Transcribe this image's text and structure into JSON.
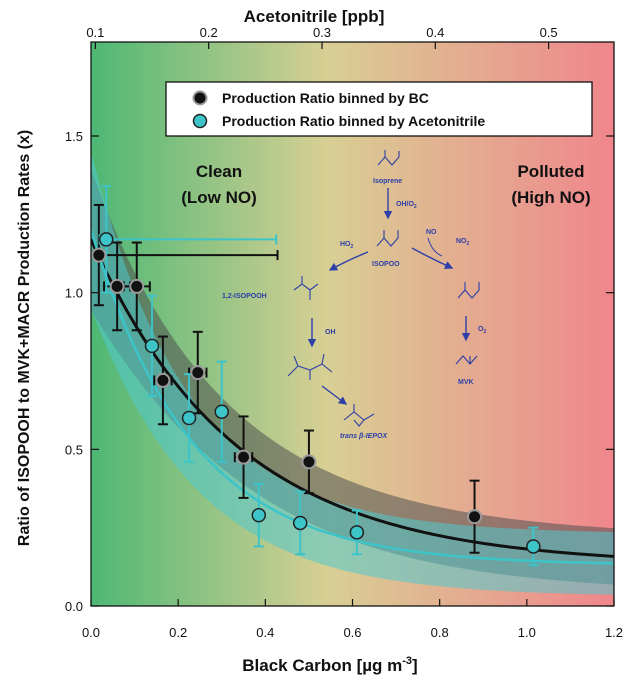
{
  "chart_data": {
    "type": "scatter",
    "xlabel": "Black Carbon [µg m",
    "xlabel_sup": "-3",
    "xlabel_end": "]",
    "x2label": "Acetonitrile [ppb]",
    "ylabel": "Ratio of ISOPOOH to MVK+MACR Production Rates (x)",
    "xlim": [
      0,
      1.2
    ],
    "ylim": [
      0,
      1.8
    ],
    "x_ticks": [
      "0.0",
      "0.2",
      "0.4",
      "0.6",
      "0.8",
      "1.0",
      "1.2"
    ],
    "y_ticks": [
      "0.0",
      "0.5",
      "1.0",
      "1.5"
    ],
    "x2_ticks": [
      "0.1",
      "0.2",
      "0.3",
      "0.4",
      "0.5"
    ],
    "x2_tick_positions_in_x_units": [
      0.01,
      0.27,
      0.53,
      0.79,
      1.05
    ],
    "regions": {
      "clean": "Clean",
      "clean_sub": "(Low NO)",
      "polluted": "Polluted",
      "polluted_sub": "(High NO)"
    },
    "legend": {
      "placement": "top",
      "entries": [
        "Production Ratio binned by BC",
        "Production Ratio binned by Acetonitrile"
      ]
    },
    "colors": {
      "bc": "#111111",
      "acetonitrile": "#3cc4c8",
      "gradient_left": "#4db874",
      "gradient_mid": "#d8cf94",
      "gradient_right": "#f0868c"
    },
    "series": [
      {
        "name": "Production Ratio binned by BC",
        "x": [
          0.018,
          0.06,
          0.105,
          0.165,
          0.245,
          0.35,
          0.5,
          0.88
        ],
        "y": [
          1.12,
          1.02,
          1.02,
          0.72,
          0.745,
          0.475,
          0.46,
          0.285
        ],
        "y_err": [
          0.16,
          0.14,
          0.14,
          0.14,
          0.13,
          0.13,
          0.1,
          0.115
        ],
        "x_err": [
          [
            0.012,
            0.41
          ],
          [
            0.03,
            0.03
          ],
          [
            0.03,
            0.03
          ],
          [
            0.02,
            0.02
          ],
          [
            0.02,
            0.02
          ],
          [
            0.02,
            0.02
          ],
          [
            0.0,
            0.0
          ],
          [
            0.0,
            0.0
          ]
        ]
      },
      {
        "name": "Production Ratio binned by Acetonitrile",
        "x": [
          0.035,
          0.14,
          0.225,
          0.3,
          0.385,
          0.48,
          0.61,
          1.015
        ],
        "y": [
          1.17,
          0.83,
          0.6,
          0.62,
          0.29,
          0.265,
          0.235,
          0.19
        ],
        "y_err": [
          0.17,
          0.16,
          0.14,
          0.16,
          0.1,
          0.1,
          0.07,
          0.06
        ],
        "x_err": [
          [
            0.015,
            0.39
          ],
          [
            0.0,
            0.0
          ],
          [
            0.0,
            0.0
          ],
          [
            0.0,
            0.0
          ],
          [
            0.0,
            0.0
          ],
          [
            0.0,
            0.0
          ],
          [
            0.0,
            0.0
          ],
          [
            0.0,
            0.0
          ]
        ]
      }
    ],
    "fits": [
      {
        "name": "BC fit",
        "y0": 1.17,
        "k": 3.0,
        "c": 0.13,
        "band": 0.09
      },
      {
        "name": "Acetonitrile fit",
        "y0": 1.2,
        "k": 4.3,
        "c": 0.13,
        "band": 0.1
      }
    ],
    "mechanism": {
      "isoprene": "Isoprene",
      "oh_o2": "OH/O",
      "o2_sub": "2",
      "ho2": "HO",
      "ho2_sub": "2",
      "no": "NO",
      "no2": "NO",
      "no2_sub": "2",
      "isopoo": "ISOPOO",
      "isopooh": "1,2-ISOPOOH",
      "oh": "OH",
      "o2": "O",
      "mvk": "MVK",
      "iepox": "trans β-IEPOX"
    }
  }
}
